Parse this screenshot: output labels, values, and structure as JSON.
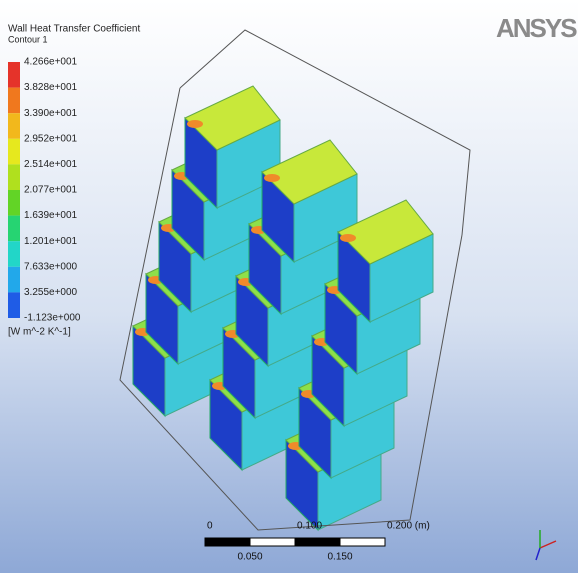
{
  "legend": {
    "title": "Wall Heat Transfer Coefficient",
    "subtitle": "Contour 1",
    "labels": [
      "4.266e+001",
      "3.828e+001",
      "3.390e+001",
      "2.952e+001",
      "2.514e+001",
      "2.077e+001",
      "1.639e+001",
      "1.201e+001",
      "7.633e+000",
      "3.255e+000",
      "-1.123e+000"
    ],
    "colors": [
      "#e5332a",
      "#f0781e",
      "#f2b81c",
      "#e6e81e",
      "#b0e01e",
      "#62d426",
      "#26d472",
      "#22d6c8",
      "#22a8ea",
      "#1f5ce6",
      "#1b26bf"
    ],
    "unit": "[W m^-2 K^-1]"
  },
  "logo": "ANSYS",
  "scale_bar": {
    "top_labels": [
      "0",
      "0.100",
      "0.200 (m)"
    ],
    "bottom_labels": [
      "0.050",
      "0.150"
    ]
  }
}
